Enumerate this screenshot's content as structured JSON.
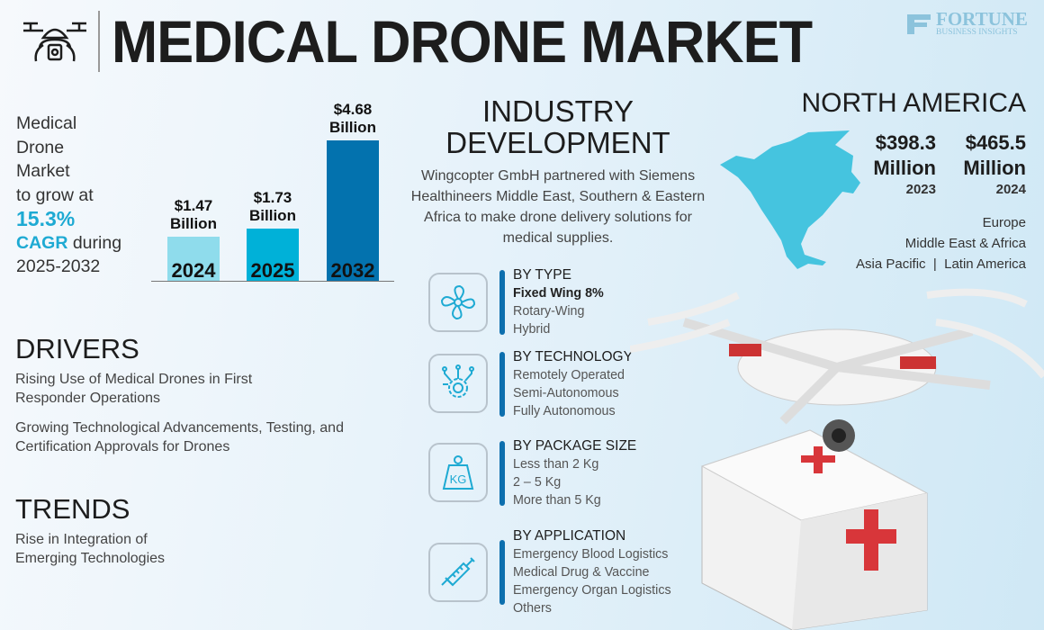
{
  "header": {
    "title": "MEDICAL DRONE MARKET",
    "logo_line1": "FORTUNE",
    "logo_line2": "BUSINESS INSIGHTS",
    "icon": "drone-icon"
  },
  "intro": {
    "line1": "Medical",
    "line2": "Drone",
    "line3": "Market",
    "line4": "to grow at",
    "cagr_value": "15.3%",
    "cagr_label": "CAGR",
    "during": " during",
    "period": "2025-2032"
  },
  "chart_data": {
    "type": "bar",
    "categories": [
      "2024",
      "2025",
      "2032"
    ],
    "values": [
      1.47,
      1.73,
      4.68
    ],
    "data_labels": [
      {
        "value": "$1.47",
        "unit": "Billion"
      },
      {
        "value": "$1.73",
        "unit": "Billion"
      },
      {
        "value": "$4.68",
        "unit": "Billion"
      }
    ],
    "colors": [
      "#8fdcec",
      "#00b1d8",
      "#0372ae"
    ],
    "ylim": [
      0,
      4.68
    ],
    "grid": false
  },
  "industry": {
    "title_line1": "INDUSTRY",
    "title_line2": "DEVELOPMENT",
    "text": "Wingcopter GmbH partnered with Siemens Healthineers Middle East, Southern & Eastern Africa to make drone delivery solutions for medical supplies."
  },
  "segments": [
    {
      "heading": "BY TYPE",
      "items": [
        "Fixed Wing 8%",
        "Rotary-Wing",
        "Hybrid"
      ],
      "icon": "propeller-icon"
    },
    {
      "heading": "BY TECHNOLOGY",
      "items": [
        "Remotely Operated",
        "Semi-Autonomous",
        "Fully Autonomous"
      ],
      "icon": "gear-circuit-icon"
    },
    {
      "heading": "BY PACKAGE SIZE",
      "items": [
        "Less than 2 Kg",
        "2 – 5 Kg",
        "More than 5 Kg"
      ],
      "icon": "weight-kg-icon"
    },
    {
      "heading": "BY APPLICATION",
      "items": [
        "Emergency Blood Logistics",
        "Medical Drug & Vaccine",
        "Emergency Organ Logistics",
        "Others"
      ],
      "icon": "syringe-icon"
    }
  ],
  "region": {
    "title": "NORTH AMERICA",
    "values": [
      {
        "amount": "$398.3",
        "unit": "Million",
        "year": "2023"
      },
      {
        "amount": "$465.5",
        "unit": "Million",
        "year": "2024"
      }
    ],
    "others": {
      "line1": "Europe",
      "line2": "Middle East & Africa",
      "line3": "Asia Pacific  |  Latin America"
    },
    "map_color": "#45c4df"
  },
  "drivers": {
    "title": "DRIVERS",
    "items": [
      "Rising Use of Medical Drones in First Responder Operations",
      "Growing Technological Advancements, Testing, and Certification Approvals for Drones"
    ]
  },
  "trends": {
    "title": "TRENDS",
    "items": [
      "Rise in Integration of Emerging Technologies"
    ]
  },
  "colors": {
    "accent": "#1eaad3",
    "segment_bar": "#0d6fae",
    "icon_stroke": "#1eaad3"
  }
}
